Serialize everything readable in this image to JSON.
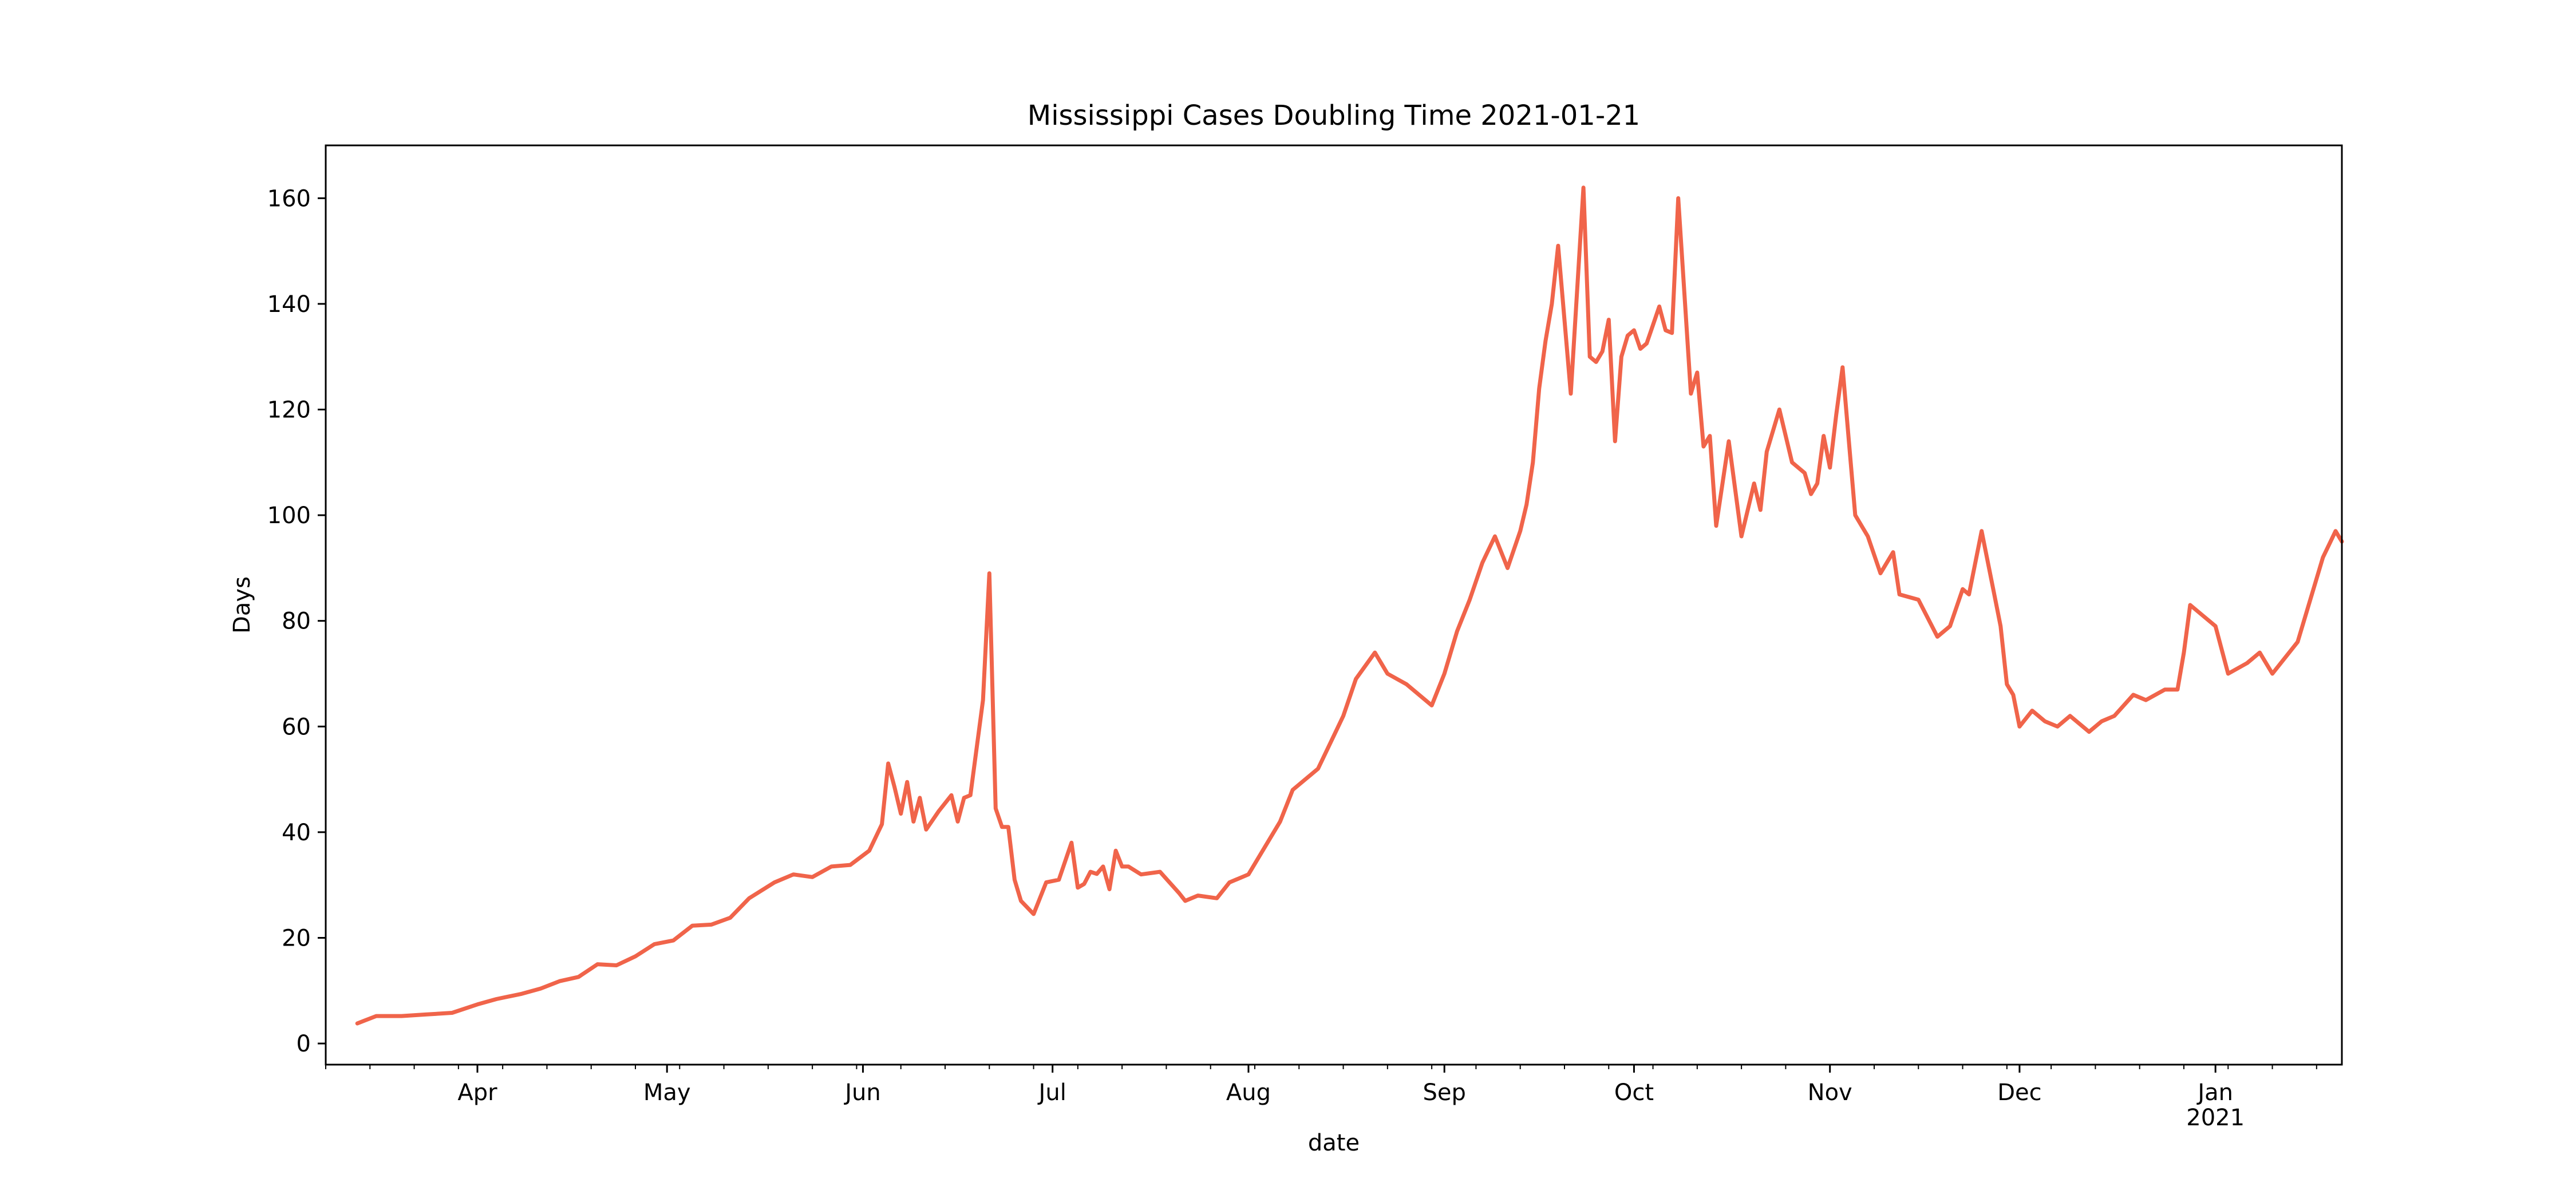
{
  "chart_data": {
    "type": "line",
    "title": "Mississippi Cases Doubling Time 2021-01-21",
    "xlabel": "date",
    "ylabel": "Days",
    "x_start": "2020-03-08",
    "x_end": "2021-01-21",
    "ylim": [
      -4,
      170
    ],
    "y_ticks": [
      0,
      20,
      40,
      60,
      80,
      100,
      120,
      140,
      160
    ],
    "x_ticks": [
      {
        "date": "2020-04-01",
        "label": "Apr",
        "sublabel": ""
      },
      {
        "date": "2020-05-01",
        "label": "May",
        "sublabel": ""
      },
      {
        "date": "2020-06-01",
        "label": "Jun",
        "sublabel": ""
      },
      {
        "date": "2020-07-01",
        "label": "Jul",
        "sublabel": ""
      },
      {
        "date": "2020-08-01",
        "label": "Aug",
        "sublabel": ""
      },
      {
        "date": "2020-09-01",
        "label": "Sep",
        "sublabel": ""
      },
      {
        "date": "2020-10-01",
        "label": "Oct",
        "sublabel": ""
      },
      {
        "date": "2020-11-01",
        "label": "Nov",
        "sublabel": ""
      },
      {
        "date": "2020-12-01",
        "label": "Dec",
        "sublabel": ""
      },
      {
        "date": "2021-01-01",
        "label": "Jan",
        "sublabel": "2021"
      }
    ],
    "grid": false,
    "legend": "none",
    "line_color": "#f0644a",
    "series": [
      {
        "x": [
          "2020-03-13",
          "2020-03-16",
          "2020-03-20",
          "2020-03-24",
          "2020-03-28",
          "2020-04-01",
          "2020-04-04",
          "2020-04-08",
          "2020-04-11",
          "2020-04-14",
          "2020-04-17",
          "2020-04-20",
          "2020-04-23",
          "2020-04-26",
          "2020-04-29",
          "2020-05-02",
          "2020-05-05",
          "2020-05-08",
          "2020-05-11",
          "2020-05-14",
          "2020-05-18",
          "2020-05-21",
          "2020-05-24",
          "2020-05-27",
          "2020-05-30",
          "2020-06-02",
          "2020-06-04",
          "2020-06-05",
          "2020-06-06",
          "2020-06-07",
          "2020-06-08",
          "2020-06-09",
          "2020-06-10",
          "2020-06-11",
          "2020-06-13",
          "2020-06-15",
          "2020-06-16",
          "2020-06-17",
          "2020-06-18",
          "2020-06-20",
          "2020-06-21",
          "2020-06-22",
          "2020-06-23",
          "2020-06-24",
          "2020-06-25",
          "2020-06-26",
          "2020-06-28",
          "2020-06-30",
          "2020-07-02",
          "2020-07-04",
          "2020-07-05",
          "2020-07-06",
          "2020-07-07",
          "2020-07-08",
          "2020-07-09",
          "2020-07-10",
          "2020-07-11",
          "2020-07-12",
          "2020-07-13",
          "2020-07-15",
          "2020-07-18",
          "2020-07-21",
          "2020-07-22",
          "2020-07-24",
          "2020-07-27",
          "2020-07-29",
          "2020-08-01",
          "2020-08-04",
          "2020-08-06",
          "2020-08-08",
          "2020-08-12",
          "2020-08-14",
          "2020-08-16",
          "2020-08-18",
          "2020-08-21",
          "2020-08-23",
          "2020-08-26",
          "2020-08-30",
          "2020-09-01",
          "2020-09-03",
          "2020-09-05",
          "2020-09-07",
          "2020-09-09",
          "2020-09-11",
          "2020-09-13",
          "2020-09-14",
          "2020-09-15",
          "2020-09-16",
          "2020-09-17",
          "2020-09-18",
          "2020-09-19",
          "2020-09-21",
          "2020-09-23",
          "2020-09-24",
          "2020-09-25",
          "2020-09-26",
          "2020-09-27",
          "2020-09-28",
          "2020-09-29",
          "2020-09-30",
          "2020-10-01",
          "2020-10-02",
          "2020-10-03",
          "2020-10-04",
          "2020-10-05",
          "2020-10-06",
          "2020-10-07",
          "2020-10-08",
          "2020-10-10",
          "2020-10-11",
          "2020-10-12",
          "2020-10-13",
          "2020-10-14",
          "2020-10-16",
          "2020-10-18",
          "2020-10-20",
          "2020-10-21",
          "2020-10-22",
          "2020-10-24",
          "2020-10-26",
          "2020-10-28",
          "2020-10-29",
          "2020-10-30",
          "2020-10-31",
          "2020-11-01",
          "2020-11-02",
          "2020-11-03",
          "2020-11-04",
          "2020-11-05",
          "2020-11-07",
          "2020-11-09",
          "2020-11-11",
          "2020-11-12",
          "2020-11-15",
          "2020-11-18",
          "2020-11-20",
          "2020-11-22",
          "2020-11-23",
          "2020-11-25",
          "2020-11-27",
          "2020-11-28",
          "2020-11-29",
          "2020-11-30",
          "2020-12-01",
          "2020-12-03",
          "2020-12-05",
          "2020-12-07",
          "2020-12-09",
          "2020-12-12",
          "2020-12-14",
          "2020-12-16",
          "2020-12-19",
          "2020-12-21",
          "2020-12-24",
          "2020-12-26",
          "2020-12-27",
          "2020-12-28",
          "2020-12-30",
          "2021-01-01",
          "2021-01-03",
          "2021-01-06",
          "2021-01-08",
          "2021-01-10",
          "2021-01-12",
          "2021-01-14",
          "2021-01-16",
          "2021-01-18",
          "2021-01-20",
          "2021-01-21"
        ],
        "y": [
          3.8,
          5.2,
          5.2,
          5.5,
          5.8,
          7.4,
          8.4,
          9.4,
          10.4,
          11.8,
          12.6,
          15,
          14.8,
          16.5,
          18.8,
          19.5,
          22.3,
          22.5,
          23.8,
          27.5,
          30.5,
          32,
          31.5,
          33.5,
          33.8,
          36.5,
          41.5,
          53,
          48.5,
          43.5,
          49.5,
          42,
          46.5,
          40.5,
          44,
          47,
          42,
          46.5,
          47,
          65,
          89,
          44.5,
          41,
          41,
          31,
          27,
          24.5,
          30.5,
          31,
          38,
          29.5,
          30.2,
          32.5,
          32.1,
          33.5,
          29.2,
          36.5,
          33.5,
          33.5,
          32,
          32.5,
          28.5,
          27,
          28,
          27.5,
          30.5,
          32,
          38,
          42,
          48,
          52,
          57,
          62,
          69,
          74,
          70,
          68,
          64,
          70,
          78,
          84,
          91,
          96,
          90,
          97,
          102,
          110,
          124,
          133,
          140,
          151,
          123,
          162,
          130,
          129,
          131,
          137,
          114,
          130,
          134,
          135,
          131.5,
          132.5,
          136,
          139.5,
          135,
          134.5,
          160,
          123,
          127,
          113,
          115,
          98,
          114,
          96,
          106,
          101,
          112,
          120,
          110,
          108,
          104,
          106,
          115,
          109,
          119,
          128,
          114,
          100,
          96,
          89,
          93,
          85,
          84,
          77,
          79,
          86,
          85,
          97,
          85,
          79,
          68,
          66,
          60,
          63,
          61,
          60,
          62,
          59,
          61,
          62,
          66,
          65,
          67,
          67,
          74,
          83,
          81,
          79,
          70,
          72,
          74,
          70,
          73,
          76,
          84,
          92,
          97,
          95
        ]
      }
    ]
  }
}
